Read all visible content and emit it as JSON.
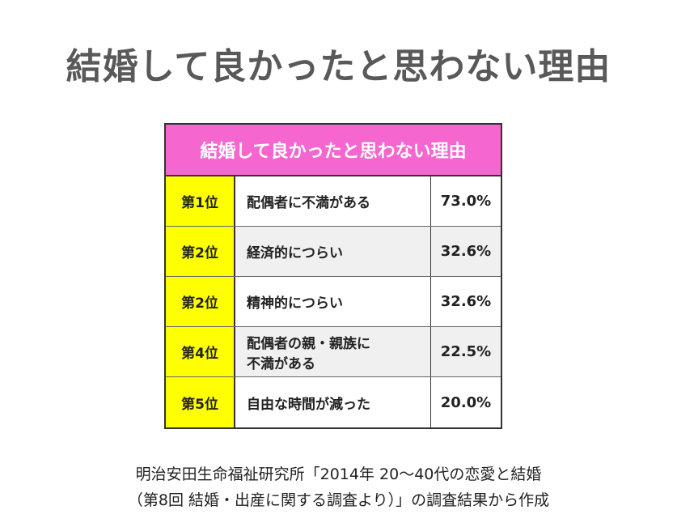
{
  "header": {
    "title": "結婚して良かったと思わない理由"
  },
  "table": {
    "title": "結婚して良かったと思わない理由",
    "rows": [
      {
        "rank": "第1位",
        "reason": [
          "配偶者に不満がある"
        ],
        "percent": "73.0%"
      },
      {
        "rank": "第2位",
        "reason": [
          "経済的につらい"
        ],
        "percent": "32.6%"
      },
      {
        "rank": "第2位",
        "reason": [
          "精神的につらい"
        ],
        "percent": "32.6%"
      },
      {
        "rank": "第4位",
        "reason": [
          "配偶者の親・親族に",
          "不満がある"
        ],
        "percent": "22.5%"
      },
      {
        "rank": "第5位",
        "reason": [
          "自由な時間が減った"
        ],
        "percent": "20.0%"
      }
    ]
  },
  "source": [
    "明治安田生命福祉研究所「2014年 20～40代の恋愛と結婚",
    "（第8回 結婚・出産に関する調査より）」の調査結果から作成"
  ]
}
